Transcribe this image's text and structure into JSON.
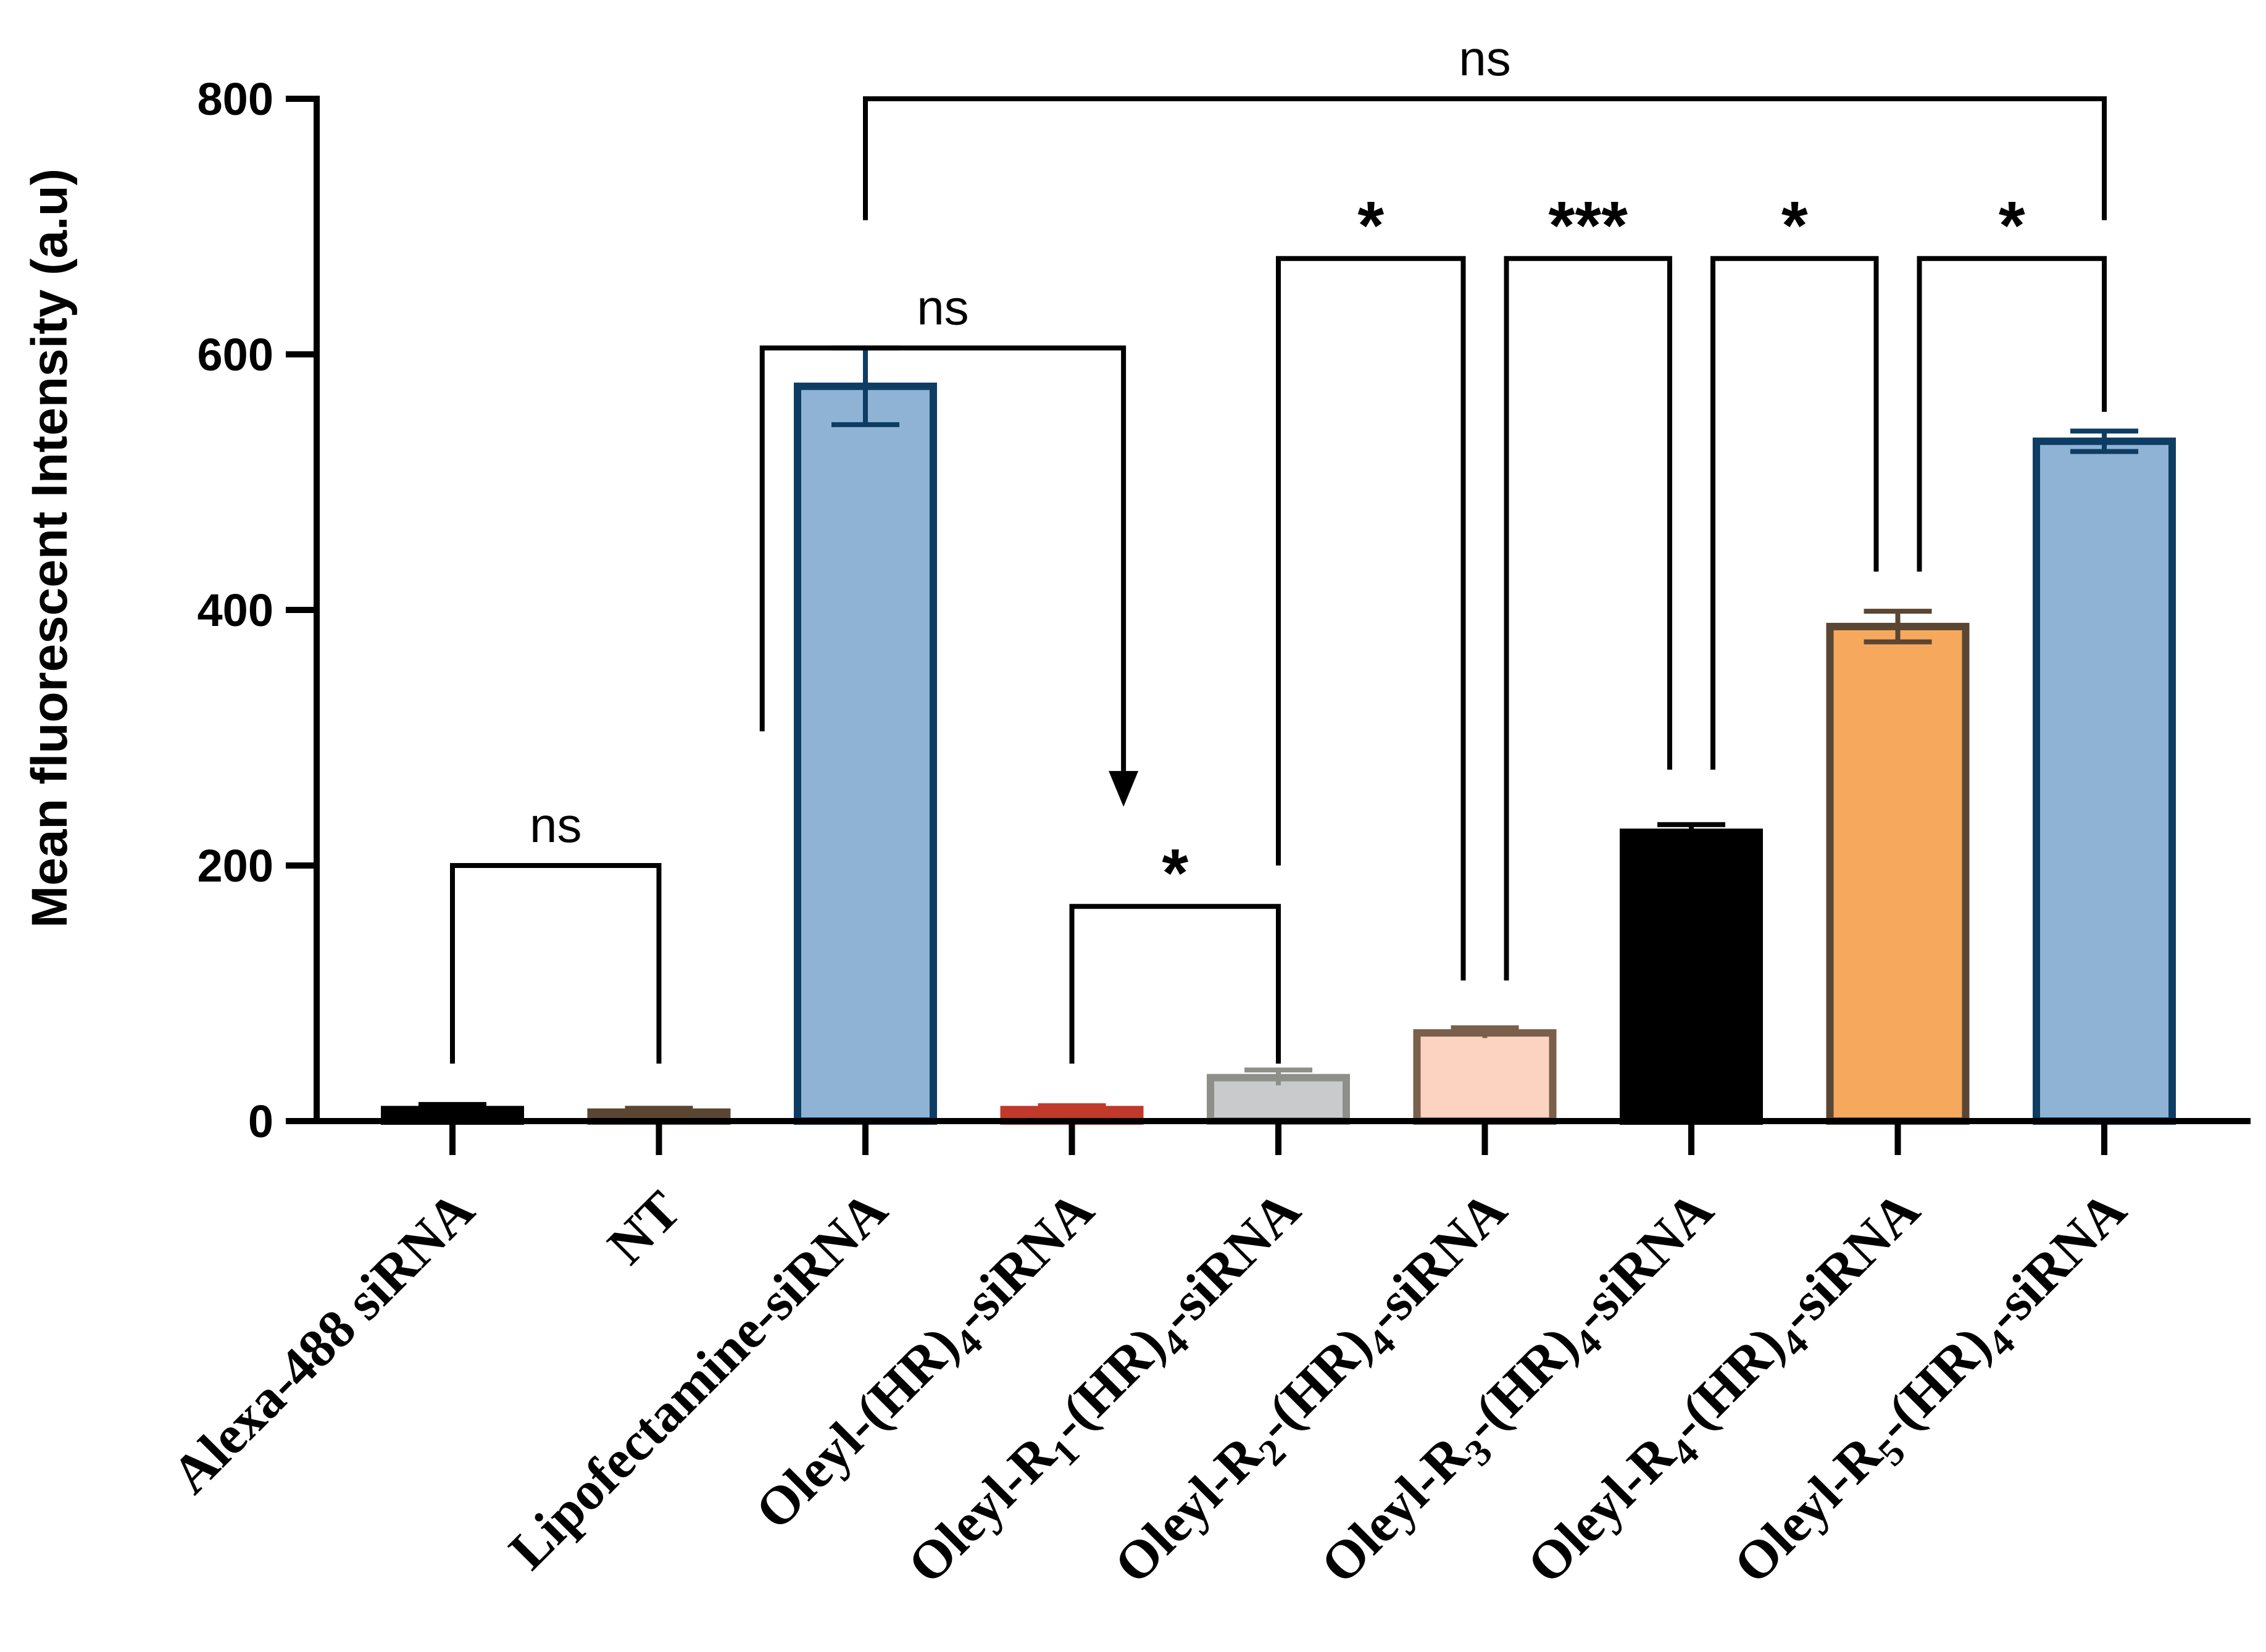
{
  "chart_data": {
    "type": "bar",
    "title": "",
    "xlabel": "",
    "ylabel": "Mean fluorescent Intensity (a.u)",
    "ylim": [
      0,
      800
    ],
    "yticks": [
      0,
      200,
      400,
      600,
      800
    ],
    "categories": [
      {
        "base": "Alexa-488 siRNA",
        "parts": [
          [
            "Alexa-488 siRNA",
            ""
          ]
        ]
      },
      {
        "base": "NT",
        "parts": [
          [
            "NT",
            ""
          ]
        ]
      },
      {
        "base": "Lipofectamine-siRNA",
        "parts": [
          [
            "Lipofectamine-siRNA",
            ""
          ]
        ]
      },
      {
        "base": "Oleyl-(HR)4-siRNA",
        "parts": [
          [
            "Oleyl-(HR)",
            ""
          ],
          [
            "4",
            "sub"
          ],
          [
            "-siRNA",
            ""
          ]
        ]
      },
      {
        "base": "Oleyl-R1-(HR)4-siRNA",
        "parts": [
          [
            "Oleyl-R",
            ""
          ],
          [
            "1",
            "sub"
          ],
          [
            "-(HR)",
            ""
          ],
          [
            "4",
            "sub"
          ],
          [
            "-siRNA",
            ""
          ]
        ]
      },
      {
        "base": "Oleyl-R2-(HR)4-siRNA",
        "parts": [
          [
            "Oleyl-R",
            ""
          ],
          [
            "2",
            "sub"
          ],
          [
            "-(HR)",
            ""
          ],
          [
            "4",
            "sub"
          ],
          [
            "-siRNA",
            ""
          ]
        ]
      },
      {
        "base": "Oleyl-R3-(HR)4-siRNA",
        "parts": [
          [
            "Oleyl-R",
            ""
          ],
          [
            "3",
            "sub"
          ],
          [
            "-(HR)",
            ""
          ],
          [
            "4",
            "sub"
          ],
          [
            "-siRNA",
            ""
          ]
        ]
      },
      {
        "base": "Oleyl-R4-(HR)4-siRNA",
        "parts": [
          [
            "Oleyl-R",
            ""
          ],
          [
            "4",
            "sub"
          ],
          [
            "-(HR)",
            ""
          ],
          [
            "4",
            "sub"
          ],
          [
            "-siRNA",
            ""
          ]
        ]
      },
      {
        "base": "Oleyl-R5-(HR)4-siRNA",
        "parts": [
          [
            "Oleyl-R",
            ""
          ],
          [
            "5",
            "sub"
          ],
          [
            "-(HR)",
            ""
          ],
          [
            "4",
            "sub"
          ],
          [
            "-siRNA",
            ""
          ]
        ]
      }
    ],
    "values": [
      9,
      7,
      575,
      9,
      34,
      69,
      226,
      387,
      532
    ],
    "errors": [
      4,
      3,
      30,
      3,
      6,
      4,
      6,
      12,
      8
    ],
    "fill_colors": [
      "#000000",
      "#5a4633",
      "#8fb3d5",
      "#c0392b",
      "#c8cacc",
      "#fcd3c1",
      "#000000",
      "#f6a95c",
      "#8fb3d5"
    ],
    "edge_colors": [
      "#000000",
      "#5a4633",
      "#0e3d63",
      "#c0392b",
      "#8f8f8a",
      "#7a5f4b",
      "#000000",
      "#5a4633",
      "#0e3d63"
    ],
    "significance": [
      {
        "from": 0,
        "to": 1,
        "label": "ns",
        "y": 200,
        "left_drop": 45,
        "right_drop": 45,
        "arrow": false
      },
      {
        "from": 3,
        "to": 4,
        "label": "*",
        "y": 168,
        "left_drop": 45,
        "right_drop": 45,
        "arrow": false
      },
      {
        "from": 1.5,
        "to": 3.25,
        "label": "ns",
        "y": 605,
        "left_drop": 305,
        "right_drop": 245,
        "arrow": true
      },
      {
        "from": 4,
        "to": 5,
        "label": "*",
        "y": 675,
        "left_drop": 200,
        "right_drop": 110,
        "arrow": false,
        "inset_right": true
      },
      {
        "from": 5,
        "to": 6,
        "label": "***",
        "y": 675,
        "left_drop": 110,
        "right_drop": 275,
        "arrow": false,
        "inset_left": true,
        "inset_right": true
      },
      {
        "from": 6,
        "to": 7,
        "label": "*",
        "y": 675,
        "left_drop": 275,
        "right_drop": 430,
        "arrow": false,
        "inset_left": true,
        "inset_right": true
      },
      {
        "from": 7,
        "to": 8,
        "label": "*",
        "y": 675,
        "left_drop": 430,
        "right_drop": 555,
        "arrow": false,
        "inset_left": true
      },
      {
        "from": 2,
        "to": 8,
        "label": "ns",
        "y": 800,
        "left_drop": 705,
        "right_drop": 705,
        "arrow": false
      }
    ]
  }
}
